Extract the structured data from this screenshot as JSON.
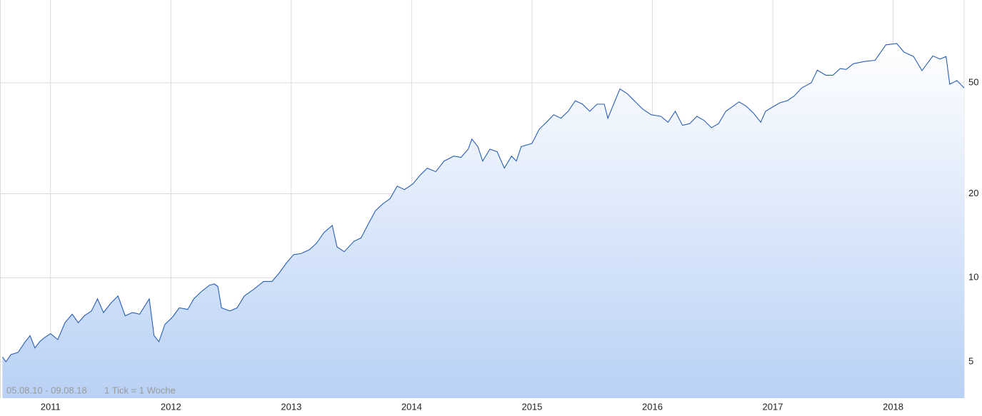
{
  "chart_data": {
    "type": "area",
    "date_range": "05.08.10 - 09.08.18",
    "tick_note": "1 Tick = 1 Woche",
    "log_scale": true,
    "grid": true,
    "color": "#2a5fb5",
    "xlim": [
      2010.58,
      2018.59
    ],
    "xticks": [
      2011,
      2012,
      2013,
      2014,
      2015,
      2016,
      2017,
      2018
    ],
    "ylim": [
      3.7,
      99
    ],
    "yticks": [
      5,
      10,
      20,
      50
    ],
    "x": [
      2010.6,
      2010.63,
      2010.67,
      2010.73,
      2010.79,
      2010.83,
      2010.87,
      2010.91,
      2010.95,
      2011.0,
      2011.06,
      2011.12,
      2011.18,
      2011.23,
      2011.28,
      2011.34,
      2011.39,
      2011.44,
      2011.5,
      2011.56,
      2011.62,
      2011.68,
      2011.74,
      2011.82,
      2011.86,
      2011.9,
      2011.95,
      2012.01,
      2012.07,
      2012.14,
      2012.19,
      2012.25,
      2012.32,
      2012.36,
      2012.39,
      2012.42,
      2012.49,
      2012.55,
      2012.61,
      2012.69,
      2012.77,
      2012.84,
      2012.9,
      2012.96,
      2013.02,
      2013.08,
      2013.15,
      2013.21,
      2013.27,
      2013.34,
      2013.38,
      2013.44,
      2013.52,
      2013.58,
      2013.64,
      2013.7,
      2013.76,
      2013.82,
      2013.88,
      2013.94,
      2014.01,
      2014.07,
      2014.13,
      2014.2,
      2014.27,
      2014.35,
      2014.41,
      2014.47,
      2014.5,
      2014.55,
      2014.59,
      2014.65,
      2014.71,
      2014.77,
      2014.83,
      2014.87,
      2014.91,
      2015.0,
      2015.06,
      2015.12,
      2015.18,
      2015.24,
      2015.3,
      2015.36,
      2015.42,
      2015.48,
      2015.54,
      2015.6,
      2015.63,
      2015.69,
      2015.73,
      2015.79,
      2015.85,
      2015.92,
      2015.99,
      2016.07,
      2016.13,
      2016.19,
      2016.25,
      2016.31,
      2016.37,
      2016.43,
      2016.49,
      2016.55,
      2016.61,
      2016.67,
      2016.72,
      2016.78,
      2016.84,
      2016.9,
      2016.94,
      2016.99,
      2017.06,
      2017.12,
      2017.18,
      2017.24,
      2017.32,
      2017.37,
      2017.44,
      2017.5,
      2017.56,
      2017.61,
      2017.67,
      2017.76,
      2017.85,
      2017.94,
      2018.03,
      2018.09,
      2018.17,
      2018.24,
      2018.33,
      2018.39,
      2018.44,
      2018.47,
      2018.53,
      2018.59
    ],
    "values": [
      5.2,
      5.0,
      5.3,
      5.4,
      5.9,
      6.2,
      5.6,
      5.9,
      6.1,
      6.3,
      6.0,
      6.9,
      7.4,
      6.9,
      7.3,
      7.6,
      8.4,
      7.5,
      8.1,
      8.6,
      7.3,
      7.5,
      7.4,
      8.4,
      6.2,
      5.9,
      6.8,
      7.2,
      7.8,
      7.7,
      8.4,
      8.9,
      9.4,
      9.5,
      9.3,
      7.8,
      7.6,
      7.8,
      8.6,
      9.1,
      9.7,
      9.7,
      10.4,
      11.3,
      12.1,
      12.2,
      12.6,
      13.3,
      14.5,
      15.4,
      12.9,
      12.4,
      13.5,
      13.9,
      15.6,
      17.4,
      18.4,
      19.2,
      21.3,
      20.7,
      21.7,
      23.3,
      24.7,
      24.0,
      26.2,
      27.3,
      27.0,
      28.9,
      31.4,
      29.5,
      26.2,
      28.9,
      28.3,
      24.7,
      27.3,
      26.2,
      29.5,
      30.3,
      34.1,
      36.1,
      38.4,
      37.3,
      39.5,
      43.1,
      41.9,
      39.5,
      41.9,
      41.9,
      37.3,
      43.1,
      47.5,
      45.7,
      43.1,
      40.2,
      38.4,
      37.9,
      36.1,
      39.5,
      35.2,
      35.7,
      37.9,
      36.6,
      34.5,
      35.7,
      39.5,
      41.2,
      42.7,
      41.2,
      38.9,
      36.1,
      39.5,
      40.7,
      42.4,
      43.1,
      44.9,
      47.9,
      50.0,
      55.5,
      53.2,
      53.2,
      56.2,
      55.8,
      58.5,
      59.6,
      60.2,
      68.4,
      69.1,
      64.4,
      62.1,
      55.3,
      62.4,
      60.8,
      62.1,
      49.4,
      50.9,
      47.9
    ]
  }
}
